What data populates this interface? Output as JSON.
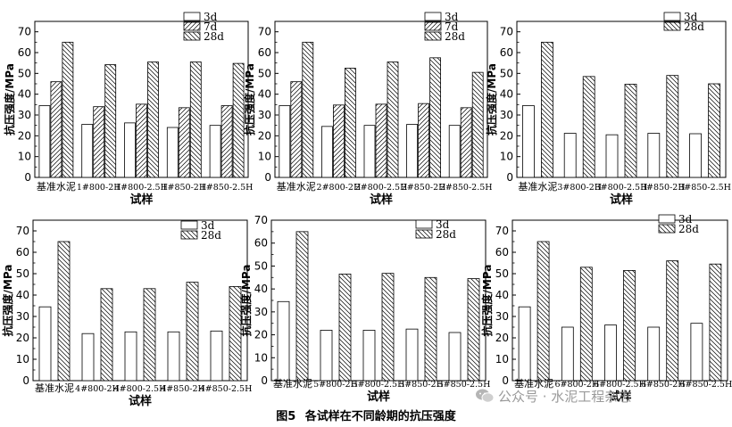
{
  "chart_data": [
    {
      "type": "bar",
      "ylabel": "抗压强度/MPa",
      "xlabel": "试样",
      "ylim": [
        0,
        75
      ],
      "yticks": [
        0,
        10,
        20,
        30,
        40,
        50,
        60,
        70
      ],
      "legend": "top-right",
      "categories": [
        "基准水泥",
        "1#800-2H",
        "1#800-2.5H",
        "1#850-2H",
        "1#850-2.5H"
      ],
      "series": [
        {
          "name": "3d",
          "values": [
            34.5,
            25.5,
            26.2,
            24.0,
            25.0
          ]
        },
        {
          "name": "7d",
          "values": [
            46.0,
            34.0,
            35.2,
            33.5,
            34.5
          ]
        },
        {
          "name": "28d",
          "values": [
            65.0,
            54.2,
            55.5,
            55.5,
            54.8
          ]
        }
      ]
    },
    {
      "type": "bar",
      "ylabel": "抗压强度/MPa",
      "xlabel": "试样",
      "ylim": [
        0,
        75
      ],
      "yticks": [
        0,
        10,
        20,
        30,
        40,
        50,
        60,
        70
      ],
      "legend": "top-right",
      "categories": [
        "基准水泥",
        "2#800-2H",
        "2#800-2.5H",
        "2#850-2H",
        "2#850-2.5H"
      ],
      "series": [
        {
          "name": "3d",
          "values": [
            34.5,
            24.5,
            25.0,
            25.5,
            25.0
          ]
        },
        {
          "name": "7d",
          "values": [
            46.0,
            34.8,
            35.2,
            35.5,
            33.5
          ]
        },
        {
          "name": "28d",
          "values": [
            65.0,
            52.5,
            55.5,
            57.5,
            50.5
          ]
        }
      ]
    },
    {
      "type": "bar",
      "ylabel": "抗压强度/MPa",
      "xlabel": "试样",
      "ylim": [
        0,
        75
      ],
      "yticks": [
        0,
        10,
        20,
        30,
        40,
        50,
        60,
        70
      ],
      "legend": "top-right",
      "categories": [
        "基准水泥",
        "3#800-2H",
        "3#800-2.5H",
        "3#850-2H",
        "3#850-2.5H"
      ],
      "series": [
        {
          "name": "3d",
          "values": [
            34.5,
            21.2,
            20.5,
            21.2,
            21.0
          ]
        },
        {
          "name": "28d",
          "values": [
            65.0,
            48.5,
            44.8,
            49.0,
            45.0
          ]
        }
      ]
    },
    {
      "type": "bar",
      "ylabel": "抗压强度/MPa",
      "xlabel": "试样",
      "ylim": [
        0,
        75
      ],
      "yticks": [
        0,
        10,
        20,
        30,
        40,
        50,
        60,
        70
      ],
      "legend": "top-right",
      "categories": [
        "基准水泥",
        "4#800-2H",
        "4#800-2.5H",
        "4#850-2H",
        "4#850-2.5H"
      ],
      "series": [
        {
          "name": "3d",
          "values": [
            34.5,
            22.0,
            22.8,
            22.8,
            23.2
          ]
        },
        {
          "name": "28d",
          "values": [
            65.0,
            43.0,
            43.0,
            46.0,
            44.0
          ]
        }
      ]
    },
    {
      "type": "bar",
      "ylabel": "抗压强度/MPa",
      "xlabel": "试样",
      "ylim": [
        0,
        70
      ],
      "yticks": [
        0,
        10,
        20,
        30,
        40,
        50,
        60,
        70
      ],
      "legend": "top-right",
      "categories": [
        "基准水泥",
        "5#800-2H",
        "5#800-2.5H",
        "5#850-2H",
        "5#850-2.5H"
      ],
      "series": [
        {
          "name": "3d",
          "values": [
            34.5,
            22.0,
            22.0,
            22.5,
            21.0
          ]
        },
        {
          "name": "28d",
          "values": [
            65.0,
            46.5,
            46.8,
            45.0,
            44.5
          ]
        }
      ]
    },
    {
      "type": "bar",
      "ylabel": "抗压强度/MPa",
      "xlabel": "试样",
      "ylim": [
        0,
        75
      ],
      "yticks": [
        0,
        10,
        20,
        30,
        40,
        50,
        60,
        70
      ],
      "legend": "top-right",
      "categories": [
        "基准水泥",
        "6#800-2H",
        "6#800-2.5H",
        "6#850-2H",
        "6#850-2.5H"
      ],
      "series": [
        {
          "name": "3d",
          "values": [
            34.5,
            25.0,
            26.0,
            25.0,
            26.8
          ]
        },
        {
          "name": "28d",
          "values": [
            65.0,
            53.0,
            51.5,
            56.0,
            54.5
          ]
        }
      ]
    }
  ],
  "caption": {
    "number": "图5",
    "text": "各试样在不同龄期的抗压强度"
  },
  "watermark": {
    "text": "公众号 · 水泥工程杂志",
    "icon": "wechat-icon"
  }
}
